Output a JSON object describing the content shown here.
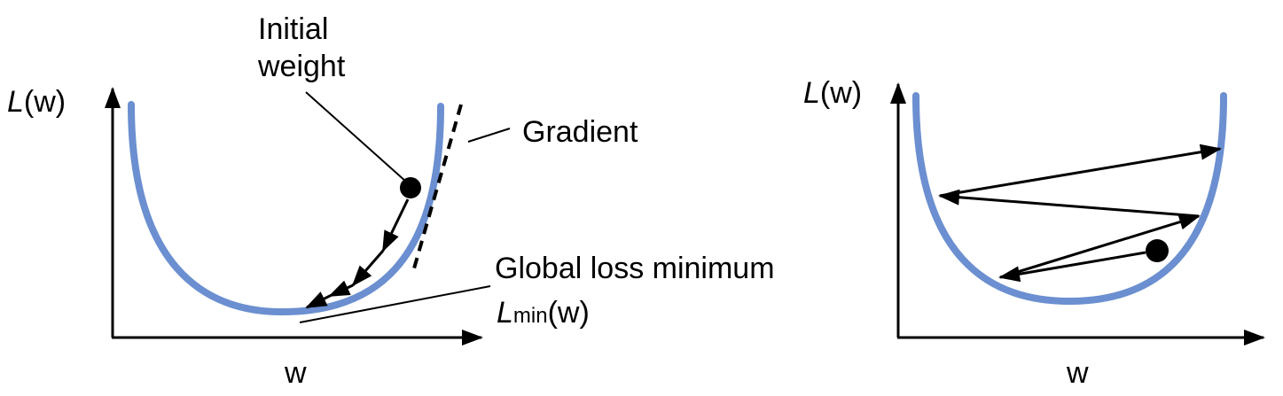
{
  "left_panel": {
    "y_axis_label": {
      "symbol": "L",
      "arg": "(w)"
    },
    "x_axis_label": "w",
    "annotations": {
      "initial_weight": [
        "Initial",
        "weight"
      ],
      "gradient": "Gradient",
      "global_minimum": "Global loss minimum",
      "minimum_formula": {
        "symbol": "L",
        "subscript": "min",
        "arg": "(w)"
      }
    }
  },
  "right_panel": {
    "y_axis_label": {
      "symbol": "L",
      "arg": "(w)"
    },
    "x_axis_label": "w"
  },
  "colors": {
    "curve": "#6b8fd0",
    "ink": "#000000",
    "background": "#ffffff"
  }
}
